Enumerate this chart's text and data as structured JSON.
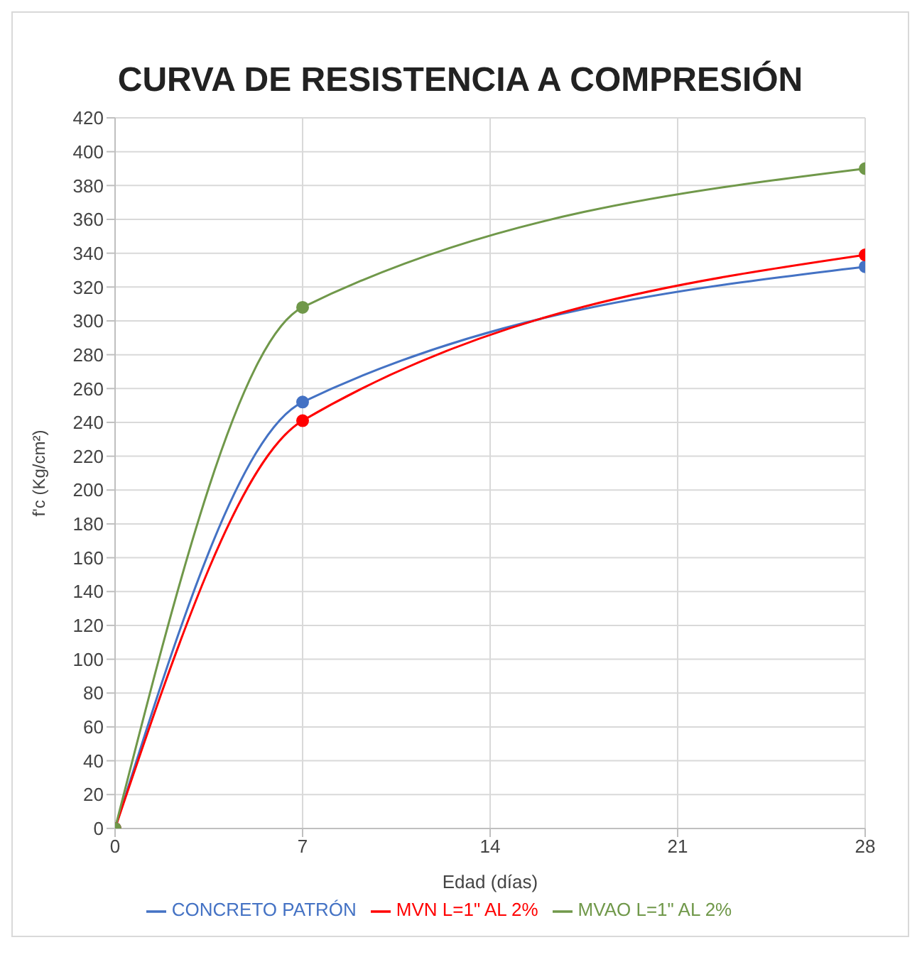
{
  "chart_data": {
    "type": "line",
    "title": "CURVA DE RESISTENCIA A COMPRESIÓN",
    "xlabel": "Edad (días)",
    "ylabel": "f'c (Kg/cm²)",
    "x": [
      0,
      7,
      28
    ],
    "series": [
      {
        "name": "CONCRETO PATRÓN",
        "color": "#4472c4",
        "values": [
          0,
          252,
          332
        ]
      },
      {
        "name": "MVN L=1\" AL 2%",
        "color": "#ff0000",
        "values": [
          0,
          241,
          339
        ]
      },
      {
        "name": "MVAO L=1\" AL 2%",
        "color": "#70984a",
        "values": [
          0,
          308,
          390
        ]
      }
    ],
    "xlim": [
      0,
      28
    ],
    "xticks": [
      0,
      7,
      14,
      21,
      28
    ],
    "ylim": [
      0,
      420
    ],
    "yticks": [
      0,
      20,
      40,
      60,
      80,
      100,
      120,
      140,
      160,
      180,
      200,
      220,
      240,
      260,
      280,
      300,
      320,
      340,
      360,
      380,
      400,
      420
    ],
    "grid": true,
    "legend": "bottom",
    "marker": "circle",
    "line_style": "solid"
  }
}
